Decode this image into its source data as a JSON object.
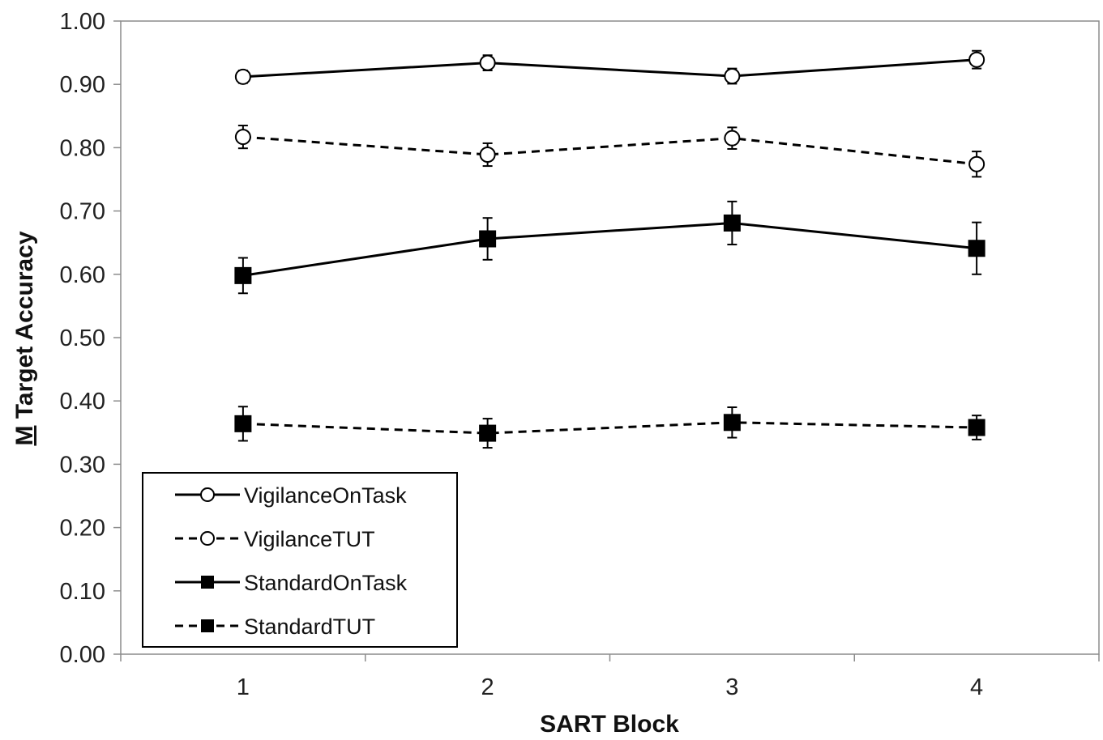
{
  "chart_data": {
    "type": "line",
    "xlabel": "SART Block",
    "ylabel_prefix": "M",
    "ylabel_rest": " Target Accuracy",
    "categories": [
      "1",
      "2",
      "3",
      "4"
    ],
    "y_ticks": [
      "0.00",
      "0.10",
      "0.20",
      "0.30",
      "0.40",
      "0.50",
      "0.60",
      "0.70",
      "0.80",
      "0.90",
      "1.00"
    ],
    "ylim": [
      0,
      1
    ],
    "grid": false,
    "legend_position": "bottom-left",
    "series": [
      {
        "name": "VigilanceOnTask",
        "values": [
          0.912,
          0.934,
          0.913,
          0.939
        ],
        "errors": [
          0.01,
          0.012,
          0.012,
          0.014
        ],
        "dash": false,
        "marker": "circle-open"
      },
      {
        "name": "VigilanceTUT",
        "values": [
          0.817,
          0.789,
          0.815,
          0.774
        ],
        "errors": [
          0.018,
          0.018,
          0.017,
          0.02
        ],
        "dash": true,
        "marker": "circle-open"
      },
      {
        "name": "StandardOnTask",
        "values": [
          0.598,
          0.656,
          0.681,
          0.641
        ],
        "errors": [
          0.028,
          0.033,
          0.034,
          0.041
        ],
        "dash": false,
        "marker": "square-filled"
      },
      {
        "name": "StandardTUT",
        "values": [
          0.364,
          0.349,
          0.366,
          0.358
        ],
        "errors": [
          0.027,
          0.023,
          0.024,
          0.019
        ],
        "dash": true,
        "marker": "square-filled"
      }
    ]
  }
}
